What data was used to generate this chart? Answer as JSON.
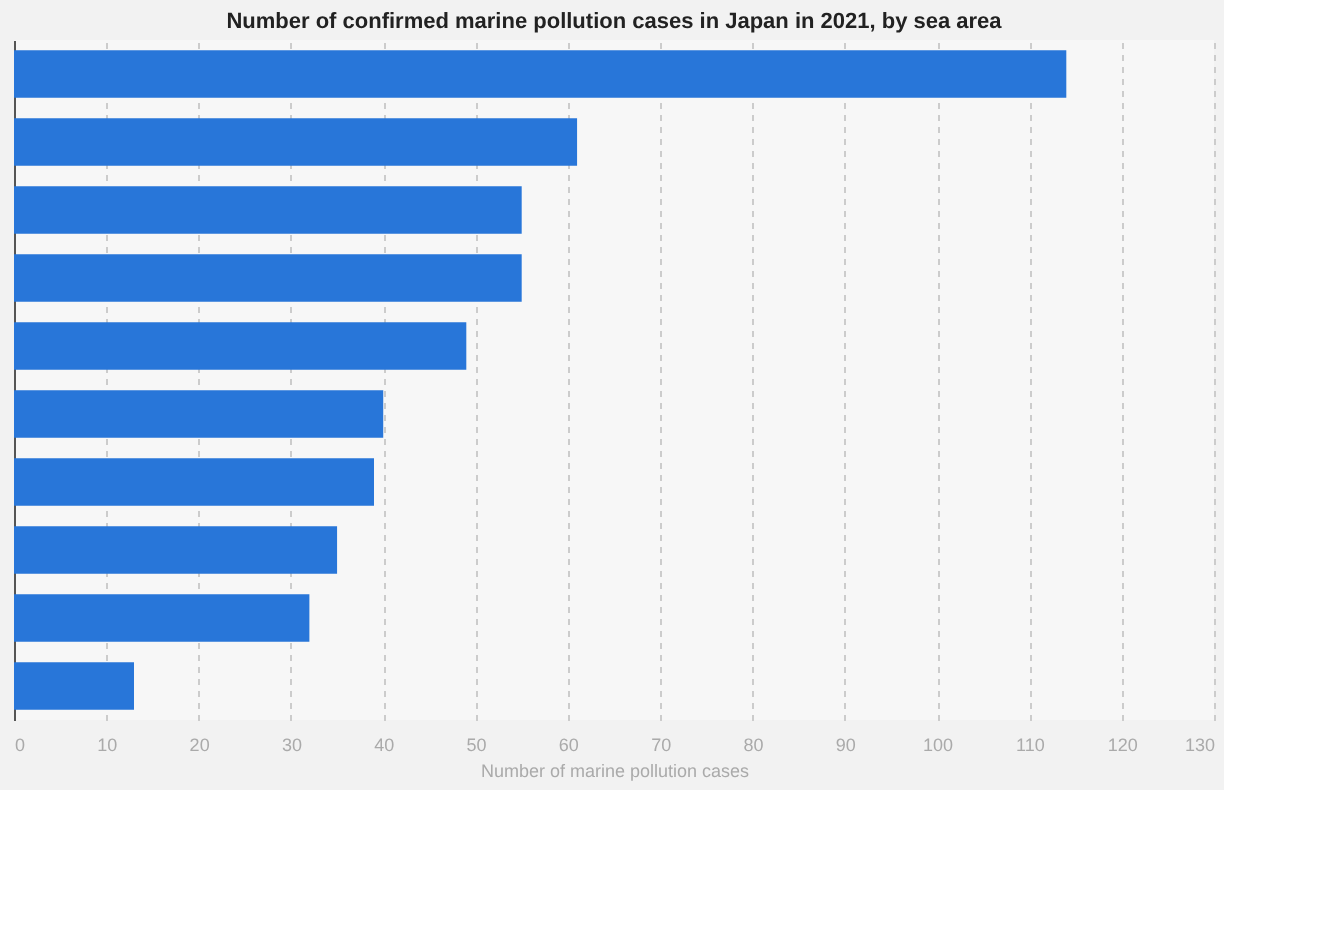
{
  "chart_data": {
    "type": "bar",
    "orientation": "horizontal",
    "title": "Number of confirmed marine pollution cases in Japan in 2021, by sea area",
    "xlabel": "Number of marine pollution cases",
    "categories": [
      null,
      null,
      null,
      null,
      null,
      null,
      null,
      null,
      null,
      null
    ],
    "values": [
      114,
      61,
      55,
      55,
      49,
      40,
      39,
      35,
      32,
      13
    ],
    "color": "#2876d9",
    "xlim": [
      0,
      130
    ],
    "xticks": [
      0,
      10,
      20,
      30,
      40,
      50,
      60,
      70,
      80,
      90,
      100,
      110,
      120,
      130
    ],
    "grid": "x"
  }
}
